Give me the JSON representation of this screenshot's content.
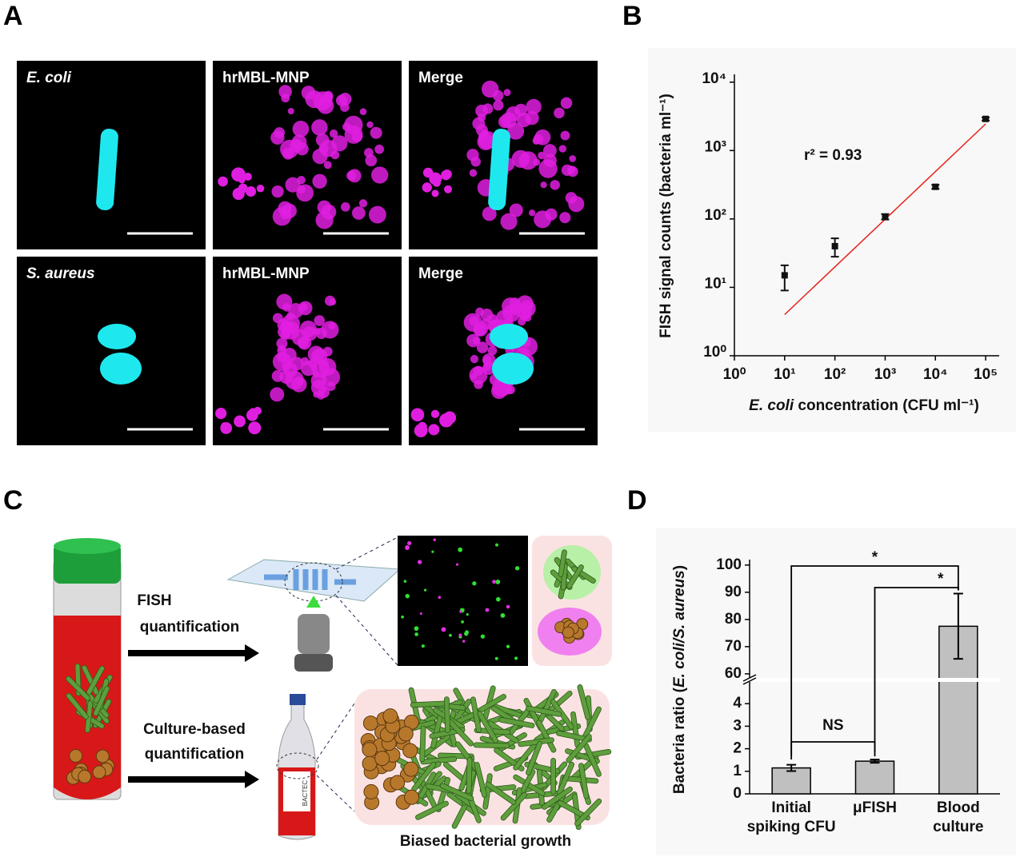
{
  "panel_labels": [
    "A",
    "B",
    "C",
    "D"
  ],
  "panel_a": {
    "images": [
      {
        "label": "E. coli",
        "italic": true
      },
      {
        "label": "hrMBL-MNP",
        "italic": false
      },
      {
        "label": "Merge",
        "italic": false
      },
      {
        "label": "S. aureus",
        "italic": true
      },
      {
        "label": "hrMBL-MNP",
        "italic": false
      },
      {
        "label": "Merge",
        "italic": false
      }
    ]
  },
  "panel_c": {
    "fish_label": [
      "FISH",
      "quantification"
    ],
    "culture_label": [
      "Culture-based",
      "quantification"
    ],
    "growth_label": "Biased bacterial growth",
    "bottle_label": "BACTEC"
  },
  "chart_data": [
    {
      "type": "scatter",
      "log_x": true,
      "log_y": true,
      "y_label": "FISH signal counts (bacteria ml⁻¹)",
      "x_label": [
        "E. coli",
        " concentration (CFU ml⁻¹)"
      ],
      "annotations": [
        "r² = 0.93"
      ],
      "xlim": [
        1,
        186000
      ],
      "ylim": [
        1,
        13000
      ],
      "xticks": [
        {
          "value": 1,
          "label": "10⁰"
        },
        {
          "value": 10,
          "label": "10¹"
        },
        {
          "value": 100,
          "label": "10²"
        },
        {
          "value": 1000,
          "label": "10³"
        },
        {
          "value": 10000,
          "label": "10⁴"
        },
        {
          "value": 100000,
          "label": "10⁵"
        }
      ],
      "yticks": [
        {
          "value": 1,
          "label": "10⁰"
        },
        {
          "value": 10,
          "label": "10¹"
        },
        {
          "value": 100,
          "label": "10²"
        },
        {
          "value": 1000,
          "label": "10³"
        },
        {
          "value": 10000,
          "label": "10⁴"
        }
      ],
      "series": [
        {
          "color": "#111111",
          "x": [
            10,
            100,
            1000,
            10000,
            100000
          ],
          "values": [
            15,
            40,
            108,
            295,
            2900
          ],
          "errors": [
            6,
            12,
            10,
            20,
            150
          ]
        }
      ],
      "fit": {
        "color": "#e8211b",
        "x": [
          10,
          100000
        ],
        "values": [
          4,
          2450
        ]
      }
    },
    {
      "type": "bar",
      "broken_axis": true,
      "y_label": [
        "Bacteria ratio (",
        "E. coli/S. aureus",
        ")"
      ],
      "categories": [
        [
          "Initial",
          "spiking CFU"
        ],
        [
          "μFISH"
        ],
        [
          "Blood",
          "culture"
        ]
      ],
      "series": [
        {
          "color": "#c0c0c0",
          "values": [
            1.15,
            1.45,
            77.5
          ],
          "errors": [
            0.14,
            0.07,
            12
          ]
        }
      ],
      "segments": [
        {
          "ylim": [
            0,
            5
          ],
          "yticks": [
            0,
            1,
            2,
            3,
            4
          ]
        },
        {
          "ylim": [
            58.5,
            102
          ],
          "yticks": [
            60,
            70,
            80,
            90,
            100
          ]
        }
      ],
      "significance": [
        {
          "from": 0,
          "to": 2,
          "label": "*"
        },
        {
          "from": 1,
          "to": 2,
          "label": "*"
        },
        {
          "from": 0,
          "to": 1,
          "label": "NS"
        }
      ]
    }
  ]
}
